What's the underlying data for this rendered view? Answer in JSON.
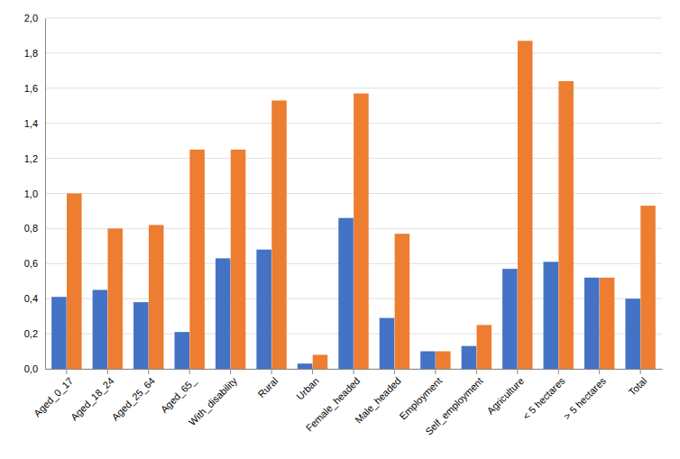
{
  "chart_data": {
    "type": "bar",
    "categories": [
      "Aged_0_17",
      "Aged_18_24",
      "Aged_25_64",
      "Aged_65_",
      "With_disability",
      "Rural",
      "Urban",
      "Female_headed",
      "Male_headed",
      "Employment",
      "Self_employment",
      "Agriculture",
      "< 5 hectares",
      "> 5 hectares",
      "Total"
    ],
    "series": [
      {
        "color": "#4472C4",
        "values": [
          0.41,
          0.45,
          0.38,
          0.21,
          0.63,
          0.68,
          0.03,
          0.86,
          0.29,
          0.1,
          0.13,
          0.57,
          0.61,
          0.52,
          0.4
        ]
      },
      {
        "color": "#ED7D31",
        "values": [
          1.0,
          0.8,
          0.82,
          1.25,
          1.25,
          1.53,
          0.08,
          1.57,
          0.77,
          0.1,
          0.25,
          1.87,
          1.64,
          0.52,
          0.93
        ]
      }
    ],
    "ylim": [
      0.0,
      2.0
    ],
    "yticks": [
      {
        "value": 0.0,
        "label": "0,0"
      },
      {
        "value": 0.2,
        "label": "0,2"
      },
      {
        "value": 0.4,
        "label": "0,4"
      },
      {
        "value": 0.6,
        "label": "0,6"
      },
      {
        "value": 0.8,
        "label": "0,8"
      },
      {
        "value": 1.0,
        "label": "1,0"
      },
      {
        "value": 1.2,
        "label": "1,2"
      },
      {
        "value": 1.4,
        "label": "1,4"
      },
      {
        "value": 1.6,
        "label": "1,6"
      },
      {
        "value": 1.8,
        "label": "1,8"
      },
      {
        "value": 2.0,
        "label": "2,0"
      }
    ],
    "grid": true
  }
}
